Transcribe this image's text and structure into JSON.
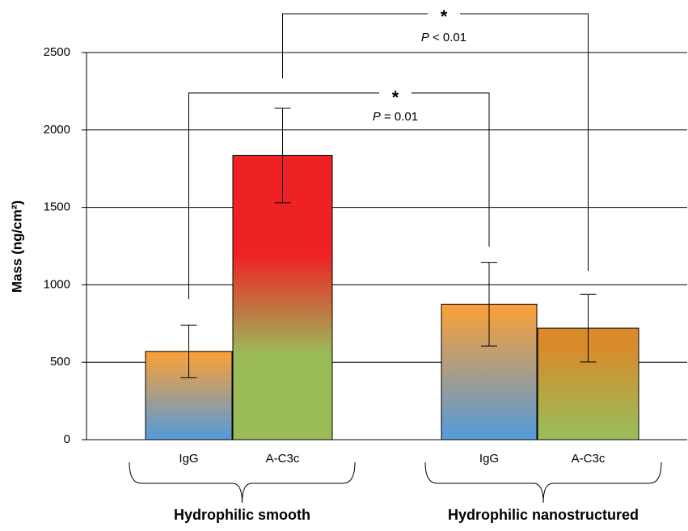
{
  "chart_data": {
    "type": "bar",
    "y_label": "Mass (ng/cm²)",
    "categories": [
      "IgG",
      "A-C3c",
      "IgG",
      "A-C3c"
    ],
    "groups": [
      "Hydrophilic smooth",
      "Hydrophilic nanostructured"
    ],
    "group_of": [
      0,
      0,
      1,
      1
    ],
    "values": [
      570,
      1835,
      875,
      720
    ],
    "errors": [
      170,
      305,
      270,
      218
    ],
    "colors": [
      [
        "#f5a03c",
        "#5b9bd5"
      ],
      [
        "#ee2224",
        "#9bbb59"
      ],
      [
        "#f5a03c",
        "#5b9bd5"
      ],
      [
        "#d98a2a",
        "#9bbb59"
      ]
    ],
    "ylim": [
      0,
      2500
    ],
    "yticks": [
      0,
      500,
      1000,
      1500,
      2000,
      2500
    ],
    "grid": true,
    "annotations": [
      {
        "star": "*",
        "p_symbol": "P",
        "p_text": "= 0.01",
        "from": 0,
        "to": 2
      },
      {
        "star": "*",
        "p_symbol": "P",
        "p_text": "< 0.01",
        "from": 1,
        "to": 3
      }
    ]
  }
}
